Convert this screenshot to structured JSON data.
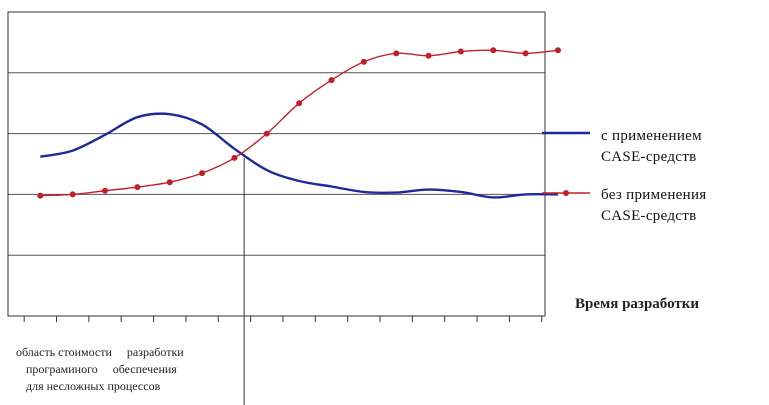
{
  "chart_data": {
    "type": "line",
    "x": [
      1,
      2,
      3,
      4,
      5,
      6,
      7,
      8,
      9,
      10,
      11,
      12,
      13,
      14,
      15,
      16,
      17
    ],
    "xlim": [
      0,
      16.6
    ],
    "ylim": [
      0,
      5
    ],
    "gridlines_y": [
      1,
      2,
      3,
      4
    ],
    "grid": true,
    "xlabel": "Время разработки",
    "ylabel": "",
    "title": "",
    "legend_position": "right",
    "series": [
      {
        "legend": [
          "с применением",
          "CASE-средств"
        ],
        "color": "#1f2a99",
        "marker": false,
        "values": [
          2.62,
          2.72,
          2.98,
          3.27,
          3.32,
          3.15,
          2.75,
          2.4,
          2.22,
          2.13,
          2.04,
          2.03,
          2.08,
          2.04,
          1.95,
          2.0,
          2.0
        ]
      },
      {
        "legend": [
          "без применения",
          "CASE-средств"
        ],
        "color": "#c0202a",
        "marker": true,
        "values": [
          1.98,
          2.0,
          2.06,
          2.12,
          2.2,
          2.35,
          2.6,
          3.0,
          3.5,
          3.88,
          4.18,
          4.32,
          4.28,
          4.35,
          4.37,
          4.32,
          4.37
        ]
      }
    ],
    "annotation": {
      "lines": [
        "область стоимости     разработки",
        "програминого     обеспечения",
        "для несложных процессов"
      ]
    },
    "colors": {
      "axis": "#333333",
      "grid": "#555555",
      "vertical_marker": "#333333"
    }
  }
}
